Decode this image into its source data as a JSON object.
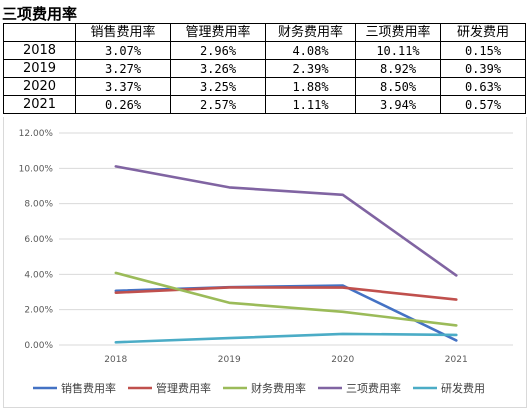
{
  "sheet": {
    "title": "三项费用率",
    "headers": [
      "",
      "销售费用率",
      "管理费用率",
      "财务费用率",
      "三项费用率",
      "研发费用"
    ],
    "rows": [
      [
        "2018",
        "3.07%",
        "2.96%",
        "4.08%",
        "10.11%",
        "0.15%"
      ],
      [
        "2019",
        "3.27%",
        "3.26%",
        "2.39%",
        "8.92%",
        "0.39%"
      ],
      [
        "2020",
        "3.37%",
        "3.25%",
        "1.88%",
        "8.50%",
        "0.63%"
      ],
      [
        "2021",
        "0.26%",
        "2.57%",
        "1.11%",
        "3.94%",
        "0.57%"
      ]
    ]
  },
  "chart_data": {
    "type": "line",
    "title": "",
    "xlabel": "",
    "ylabel": "",
    "categories": [
      "2018",
      "2019",
      "2020",
      "2021"
    ],
    "ylim": [
      0,
      12
    ],
    "yticks": [
      0,
      2,
      4,
      6,
      8,
      10,
      12
    ],
    "ytick_labels": [
      "0.00%",
      "2.00%",
      "4.00%",
      "6.00%",
      "8.00%",
      "10.00%",
      "12.00%"
    ],
    "grid": true,
    "legend_position": "bottom",
    "series": [
      {
        "name": "销售费用率",
        "color": "#4472C4",
        "values": [
          3.07,
          3.27,
          3.37,
          0.26
        ]
      },
      {
        "name": "管理费用率",
        "color": "#C0504D",
        "values": [
          2.96,
          3.26,
          3.25,
          2.57
        ]
      },
      {
        "name": "财务费用率",
        "color": "#9BBB59",
        "values": [
          4.08,
          2.39,
          1.88,
          1.11
        ]
      },
      {
        "name": "三项费用率",
        "color": "#8064A2",
        "values": [
          10.11,
          8.92,
          8.5,
          3.94
        ]
      },
      {
        "name": "研发费用",
        "color": "#4BACC6",
        "values": [
          0.15,
          0.39,
          0.63,
          0.57
        ]
      }
    ]
  }
}
